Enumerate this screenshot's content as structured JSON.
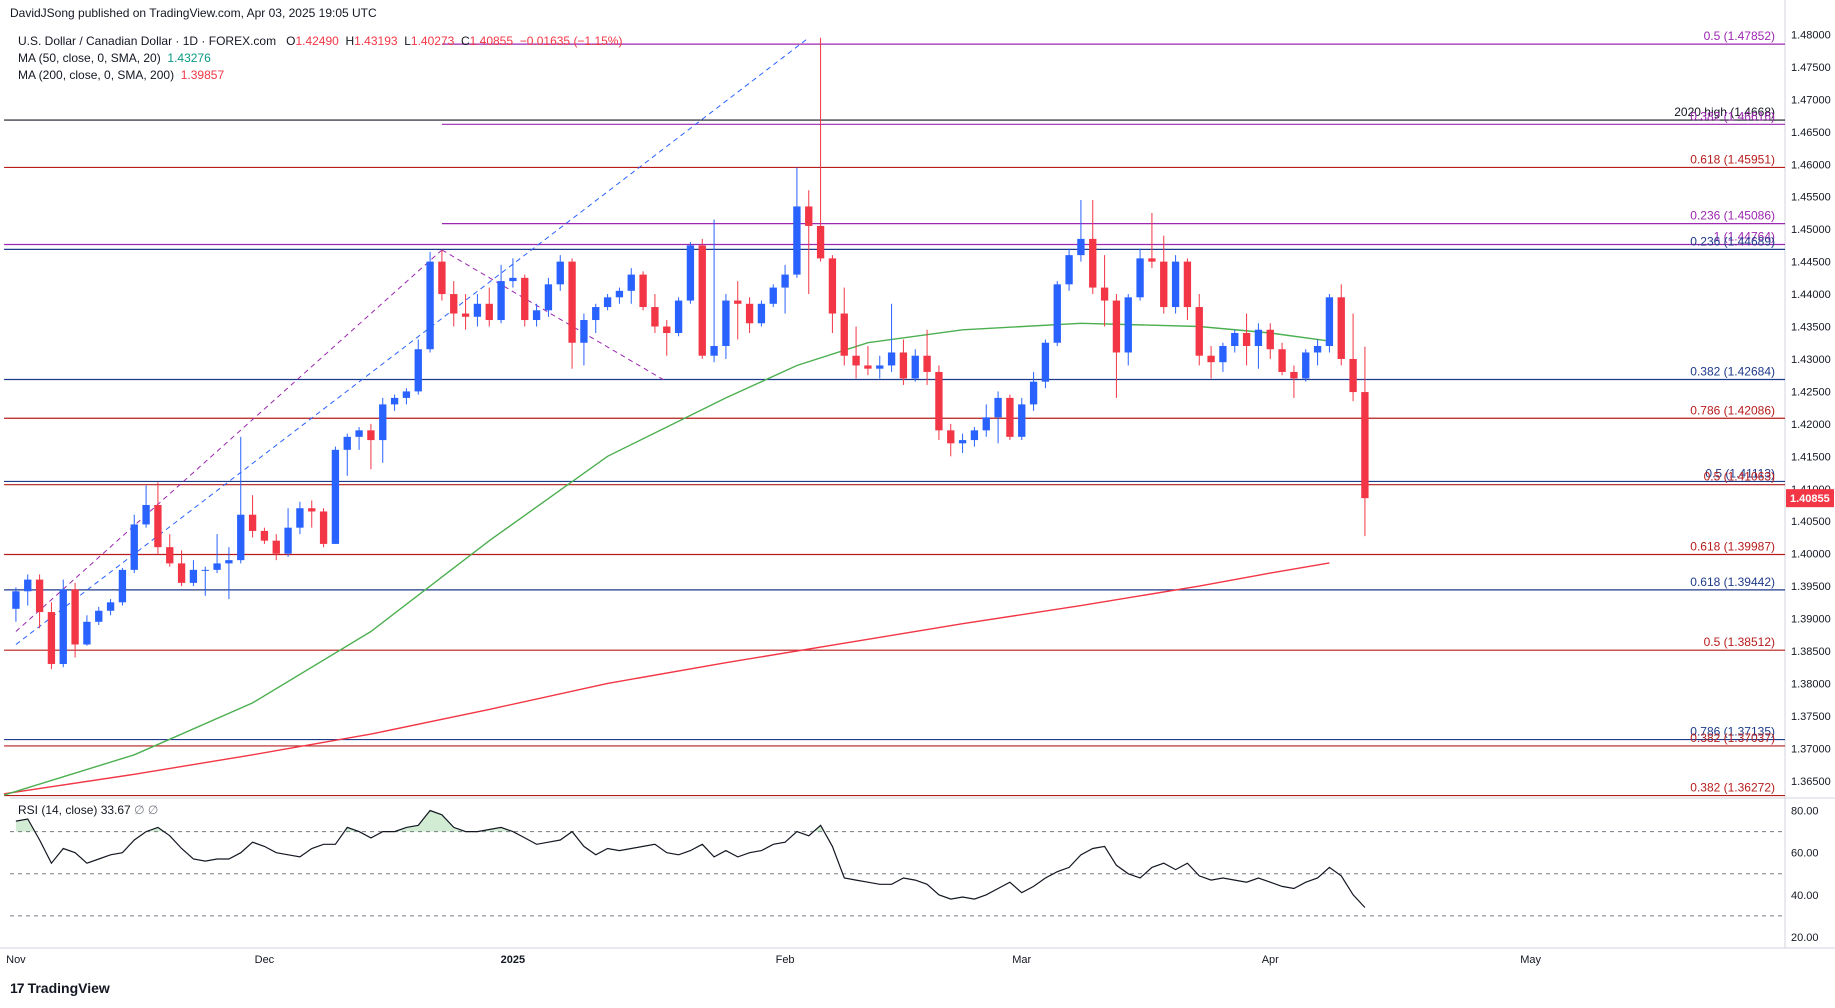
{
  "header": {
    "publisher": "DavidJSong published on TradingView.com, Apr 03, 2025 19:05 UTC",
    "symbol": "U.S. Dollar / Canadian Dollar · 1D · FOREX.com",
    "ohlc": {
      "o_label": "O",
      "o": "1.42490",
      "h_label": "H",
      "h": "1.43193",
      "l_label": "L",
      "l": "1.40273",
      "c_label": "C",
      "c": "1.40855",
      "change": "−0.01635 (−1.15%)"
    },
    "ma50": {
      "label": "MA (50, close, 0, SMA, 20)",
      "value": "1.43276"
    },
    "ma200": {
      "label": "MA (200, close, 0, SMA, 200)",
      "value": "1.39857"
    },
    "rsi": {
      "label": "RSI (14, close)",
      "value": "33.67",
      "extra": "∅ ∅"
    }
  },
  "logo": {
    "text": "TradingView"
  },
  "colors": {
    "up": "#2962ff",
    "down": "#f23645",
    "ma50": "#4caf50",
    "ma200": "#f23645",
    "rsi": "#131722",
    "fib_purple": "#9c27b0",
    "fib_red": "#b71c1c",
    "fib_blue": "#1e3a8a"
  },
  "chart_data": {
    "type": "candlestick",
    "symbol": "USDCAD",
    "ylim": [
      1.3625,
      1.481
    ],
    "y_ticks": [
      "1.48000",
      "1.47500",
      "1.47000",
      "1.46500",
      "1.46000",
      "1.45500",
      "1.45000",
      "1.44500",
      "1.44000",
      "1.43500",
      "1.43000",
      "1.42500",
      "1.42000",
      "1.41500",
      "1.41000",
      "1.40500",
      "1.40000",
      "1.39500",
      "1.39000",
      "1.38500",
      "1.38000",
      "1.37500",
      "1.37000",
      "1.36500"
    ],
    "x_ticks": [
      {
        "label": "Nov",
        "index": 0
      },
      {
        "label": "Dec",
        "index": 21
      },
      {
        "label": "2025",
        "index": 42
      },
      {
        "label": "Feb",
        "index": 65
      },
      {
        "label": "Mar",
        "index": 85
      },
      {
        "label": "Apr",
        "index": 106
      },
      {
        "label": "May",
        "index": 128
      }
    ],
    "x_span": [
      -0.5,
      149.5
    ],
    "last_price_label": "1.40855",
    "candles": [
      [
        1.3915,
        1.3948,
        1.3895,
        1.3942
      ],
      [
        1.3942,
        1.3968,
        1.392,
        1.396
      ],
      [
        1.396,
        1.3968,
        1.3885,
        1.391
      ],
      [
        1.391,
        1.3925,
        1.3822,
        1.383
      ],
      [
        1.383,
        1.396,
        1.3825,
        1.3945
      ],
      [
        1.3945,
        1.3955,
        1.384,
        1.386
      ],
      [
        1.386,
        1.3905,
        1.3858,
        1.3895
      ],
      [
        1.3895,
        1.3918,
        1.389,
        1.3912
      ],
      [
        1.3912,
        1.393,
        1.3905,
        1.3925
      ],
      [
        1.3925,
        1.3978,
        1.392,
        1.3975
      ],
      [
        1.3975,
        1.406,
        1.397,
        1.4045
      ],
      [
        1.4045,
        1.4105,
        1.404,
        1.4075
      ],
      [
        1.4075,
        1.411,
        1.4,
        1.401
      ],
      [
        1.401,
        1.403,
        1.398,
        1.3985
      ],
      [
        1.3985,
        1.4005,
        1.395,
        1.3955
      ],
      [
        1.3955,
        1.399,
        1.395,
        1.3975
      ],
      [
        1.3975,
        1.398,
        1.3935,
        1.3975
      ],
      [
        1.3975,
        1.403,
        1.397,
        1.3985
      ],
      [
        1.3985,
        1.401,
        1.393,
        1.399
      ],
      [
        1.399,
        1.418,
        1.3985,
        1.406
      ],
      [
        1.406,
        1.409,
        1.4025,
        1.4035
      ],
      [
        1.4035,
        1.404,
        1.4015,
        1.402
      ],
      [
        1.402,
        1.403,
        1.399,
        1.4
      ],
      [
        1.4,
        1.407,
        1.3995,
        1.404
      ],
      [
        1.404,
        1.408,
        1.403,
        1.407
      ],
      [
        1.407,
        1.4082,
        1.404,
        1.4065
      ],
      [
        1.4065,
        1.407,
        1.401,
        1.4015
      ],
      [
        1.4015,
        1.4165,
        1.4015,
        1.416
      ],
      [
        1.416,
        1.4185,
        1.412,
        1.418
      ],
      [
        1.418,
        1.4195,
        1.416,
        1.419
      ],
      [
        1.419,
        1.42,
        1.413,
        1.4175
      ],
      [
        1.4175,
        1.424,
        1.414,
        1.423
      ],
      [
        1.423,
        1.4245,
        1.422,
        1.424
      ],
      [
        1.424,
        1.4255,
        1.423,
        1.425
      ],
      [
        1.425,
        1.433,
        1.4245,
        1.4315
      ],
      [
        1.4315,
        1.4465,
        1.431,
        1.445
      ],
      [
        1.445,
        1.4468,
        1.439,
        1.44
      ],
      [
        1.44,
        1.442,
        1.435,
        1.437
      ],
      [
        1.437,
        1.44,
        1.4345,
        1.4365
      ],
      [
        1.4365,
        1.44,
        1.435,
        1.4385
      ],
      [
        1.4385,
        1.441,
        1.435,
        1.436
      ],
      [
        1.436,
        1.4445,
        1.4355,
        1.442
      ],
      [
        1.442,
        1.4455,
        1.441,
        1.4425
      ],
      [
        1.4425,
        1.443,
        1.435,
        1.436
      ],
      [
        1.436,
        1.4385,
        1.435,
        1.4375
      ],
      [
        1.4375,
        1.4425,
        1.4365,
        1.4415
      ],
      [
        1.4415,
        1.446,
        1.4405,
        1.445
      ],
      [
        1.445,
        1.4455,
        1.4285,
        1.4325
      ],
      [
        1.4325,
        1.437,
        1.429,
        1.436
      ],
      [
        1.436,
        1.4385,
        1.434,
        1.438
      ],
      [
        1.438,
        1.44,
        1.4375,
        1.4395
      ],
      [
        1.4395,
        1.441,
        1.4385,
        1.4405
      ],
      [
        1.4405,
        1.444,
        1.4385,
        1.443
      ],
      [
        1.443,
        1.4435,
        1.4375,
        1.438
      ],
      [
        1.438,
        1.44,
        1.434,
        1.435
      ],
      [
        1.435,
        1.436,
        1.4305,
        1.434
      ],
      [
        1.434,
        1.4395,
        1.4335,
        1.439
      ],
      [
        1.439,
        1.448,
        1.4385,
        1.4475
      ],
      [
        1.4475,
        1.4485,
        1.43,
        1.4305
      ],
      [
        1.4305,
        1.4515,
        1.4295,
        1.432
      ],
      [
        1.432,
        1.44,
        1.43,
        1.439
      ],
      [
        1.439,
        1.442,
        1.433,
        1.4385
      ],
      [
        1.4385,
        1.4395,
        1.434,
        1.4355
      ],
      [
        1.4355,
        1.439,
        1.435,
        1.4385
      ],
      [
        1.4385,
        1.4415,
        1.438,
        1.441
      ],
      [
        1.441,
        1.4445,
        1.437,
        1.443
      ],
      [
        1.443,
        1.4595,
        1.4425,
        1.4535
      ],
      [
        1.4535,
        1.456,
        1.44,
        1.4505
      ],
      [
        1.4505,
        1.4795,
        1.445,
        1.4455
      ],
      [
        1.4455,
        1.446,
        1.434,
        1.437
      ],
      [
        1.437,
        1.441,
        1.429,
        1.4305
      ],
      [
        1.4305,
        1.435,
        1.427,
        1.429
      ],
      [
        1.429,
        1.432,
        1.4275,
        1.4285
      ],
      [
        1.4285,
        1.4305,
        1.427,
        1.429
      ],
      [
        1.429,
        1.4385,
        1.428,
        1.431
      ],
      [
        1.431,
        1.433,
        1.426,
        1.427
      ],
      [
        1.427,
        1.4315,
        1.4265,
        1.4305
      ],
      [
        1.4305,
        1.4345,
        1.426,
        1.428
      ],
      [
        1.428,
        1.429,
        1.4175,
        1.419
      ],
      [
        1.419,
        1.42,
        1.415,
        1.417
      ],
      [
        1.417,
        1.4185,
        1.4155,
        1.4175
      ],
      [
        1.4175,
        1.4195,
        1.4165,
        1.419
      ],
      [
        1.419,
        1.423,
        1.418,
        1.421
      ],
      [
        1.421,
        1.425,
        1.417,
        1.424
      ],
      [
        1.424,
        1.4245,
        1.4175,
        1.418
      ],
      [
        1.418,
        1.424,
        1.4175,
        1.423
      ],
      [
        1.423,
        1.428,
        1.422,
        1.4265
      ],
      [
        1.4265,
        1.433,
        1.4255,
        1.4325
      ],
      [
        1.4325,
        1.442,
        1.432,
        1.4415
      ],
      [
        1.4415,
        1.447,
        1.4405,
        1.446
      ],
      [
        1.446,
        1.4545,
        1.445,
        1.4485
      ],
      [
        1.4485,
        1.4545,
        1.44,
        1.441
      ],
      [
        1.441,
        1.446,
        1.435,
        1.439
      ],
      [
        1.439,
        1.44,
        1.424,
        1.431
      ],
      [
        1.431,
        1.44,
        1.429,
        1.4395
      ],
      [
        1.4395,
        1.447,
        1.439,
        1.4455
      ],
      [
        1.4455,
        1.4525,
        1.444,
        1.445
      ],
      [
        1.445,
        1.449,
        1.437,
        1.438
      ],
      [
        1.438,
        1.446,
        1.437,
        1.445
      ],
      [
        1.445,
        1.4455,
        1.436,
        1.438
      ],
      [
        1.438,
        1.44,
        1.429,
        1.4305
      ],
      [
        1.4305,
        1.432,
        1.427,
        1.4295
      ],
      [
        1.4295,
        1.4325,
        1.428,
        1.432
      ],
      [
        1.432,
        1.4345,
        1.431,
        1.434
      ],
      [
        1.434,
        1.437,
        1.429,
        1.432
      ],
      [
        1.432,
        1.4355,
        1.4285,
        1.4345
      ],
      [
        1.4345,
        1.4355,
        1.43,
        1.4315
      ],
      [
        1.4315,
        1.4325,
        1.4275,
        1.428
      ],
      [
        1.428,
        1.429,
        1.424,
        1.427
      ],
      [
        1.427,
        1.4315,
        1.4265,
        1.431
      ],
      [
        1.431,
        1.433,
        1.429,
        1.432
      ],
      [
        1.432,
        1.44,
        1.431,
        1.4395
      ],
      [
        1.4395,
        1.4415,
        1.429,
        1.43
      ],
      [
        1.43,
        1.437,
        1.4235,
        1.4249
      ],
      [
        1.4249,
        1.4319,
        1.4027,
        1.40855
      ]
    ],
    "ma50": {
      "name": "MA (50, close, 0, SMA, 20)",
      "points": [
        [
          -1,
          1.3628
        ],
        [
          10,
          1.369
        ],
        [
          20,
          1.377
        ],
        [
          30,
          1.388
        ],
        [
          40,
          1.402
        ],
        [
          50,
          1.415
        ],
        [
          60,
          1.424
        ],
        [
          66,
          1.429
        ],
        [
          72,
          1.4325
        ],
        [
          80,
          1.4345
        ],
        [
          90,
          1.4355
        ],
        [
          100,
          1.435
        ],
        [
          106,
          1.434
        ],
        [
          111,
          1.43276
        ]
      ]
    },
    "ma200": {
      "name": "MA (200, close, 0, SMA, 200)",
      "points": [
        [
          -1,
          1.363
        ],
        [
          10,
          1.366
        ],
        [
          20,
          1.369
        ],
        [
          30,
          1.3722
        ],
        [
          40,
          1.376
        ],
        [
          50,
          1.38
        ],
        [
          60,
          1.3832
        ],
        [
          70,
          1.3862
        ],
        [
          80,
          1.3892
        ],
        [
          90,
          1.392
        ],
        [
          100,
          1.395
        ],
        [
          106,
          1.397
        ],
        [
          111,
          1.39857
        ]
      ]
    },
    "trend_lines": [
      {
        "from": [
          0,
          1.386
        ],
        "to": [
          67,
          1.4795
        ],
        "style": "dashed",
        "color": "#2962ff"
      },
      {
        "from": [
          0,
          1.388
        ],
        "to": [
          36,
          1.4468
        ],
        "style": "dashed",
        "color": "#9c27b0"
      },
      {
        "from": [
          36,
          1.4468
        ],
        "to": [
          55,
          1.4265
        ],
        "style": "dashed",
        "color": "#9c27b0"
      }
    ],
    "horizontal_levels": [
      {
        "value": 1.47852,
        "label": "0.5 (1.47852)",
        "color": "#9c27b0",
        "start": 36
      },
      {
        "value": 1.46681,
        "label": "2020 high (1.4668)",
        "color": "#131722",
        "start": 0
      },
      {
        "value": 1.46616,
        "label": "0.382 (1.46616)",
        "color": "#9c27b0",
        "start": 36
      },
      {
        "value": 1.45951,
        "label": "0.618 (1.45951)",
        "color": "#b71c1c",
        "start": 0
      },
      {
        "value": 1.45086,
        "label": "0.236 (1.45086)",
        "color": "#9c27b0",
        "start": 36
      },
      {
        "value": 1.44764,
        "label": "1 (1.44764)",
        "color": "#9c27b0",
        "start": 0
      },
      {
        "value": 1.44689,
        "label": "0.236 (1.44689)",
        "color": "#1e3a8a",
        "start": 0
      },
      {
        "value": 1.42684,
        "label": "0.382 (1.42684)",
        "color": "#1e3a8a",
        "start": 0
      },
      {
        "value": 1.42086,
        "label": "0.786 (1.42086)",
        "color": "#b71c1c",
        "start": 0
      },
      {
        "value": 1.41113,
        "label": "0.5 (1.41113)",
        "color": "#1e3a8a",
        "start": 0
      },
      {
        "value": 1.41063,
        "label": "0.5 (1.41063)",
        "color": "#b71c1c",
        "start": 0
      },
      {
        "value": 1.39987,
        "label": "0.618 (1.39987)",
        "color": "#b71c1c",
        "start": 0
      },
      {
        "value": 1.39442,
        "label": "0.618 (1.39442)",
        "color": "#1e3a8a",
        "start": 0
      },
      {
        "value": 1.38512,
        "label": "0.5 (1.38512)",
        "color": "#b71c1c",
        "start": 0
      },
      {
        "value": 1.37135,
        "label": "0.786 (1.37135)",
        "color": "#1e3a8a",
        "start": 0
      },
      {
        "value": 1.37037,
        "label": "0.382 (1.37037)",
        "color": "#b71c1c",
        "start": 0
      },
      {
        "value": 1.36272,
        "label": "0.382 (1.36272)",
        "color": "#b71c1c",
        "start": 0
      }
    ],
    "rsi": {
      "ylim": [
        20,
        85
      ],
      "y_ticks": [
        "80.00",
        "60.00",
        "40.00",
        "20.00"
      ],
      "levels": [
        70,
        50,
        30
      ],
      "values": [
        75,
        76,
        66,
        55,
        62,
        60,
        55,
        57,
        59,
        60,
        66,
        70,
        72,
        68,
        62,
        57,
        56,
        57,
        57,
        60,
        65,
        63,
        60,
        59,
        58,
        62,
        64,
        64,
        72,
        70,
        67,
        70,
        70,
        72,
        73,
        80,
        78,
        72,
        70,
        70,
        71,
        72,
        70,
        67,
        64,
        65,
        66,
        70,
        63,
        59,
        62,
        61,
        62,
        63,
        64,
        60,
        59,
        61,
        64,
        58,
        61,
        58,
        60,
        61,
        64,
        65,
        70,
        68,
        73,
        63,
        48,
        47,
        46,
        45,
        45,
        48,
        47,
        45,
        40,
        38,
        39,
        38,
        40,
        43,
        46,
        41,
        44,
        48,
        51,
        53,
        59,
        62,
        63,
        54,
        50,
        48,
        53,
        55,
        52,
        55,
        49,
        47,
        48,
        47,
        46,
        48,
        46,
        44,
        43,
        46,
        48,
        53,
        49,
        40,
        34
      ]
    }
  }
}
